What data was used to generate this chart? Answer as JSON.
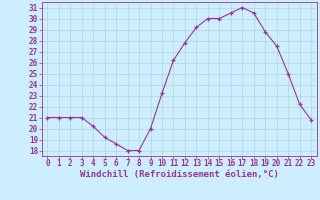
{
  "x": [
    0,
    1,
    2,
    3,
    4,
    5,
    6,
    7,
    8,
    9,
    10,
    11,
    12,
    13,
    14,
    15,
    16,
    17,
    18,
    19,
    20,
    21,
    22,
    23
  ],
  "y": [
    21.0,
    21.0,
    21.0,
    21.0,
    20.2,
    19.2,
    18.6,
    18.0,
    18.0,
    20.0,
    23.2,
    26.2,
    27.8,
    29.2,
    30.0,
    30.0,
    30.5,
    31.0,
    30.5,
    28.8,
    27.5,
    25.0,
    22.2,
    20.8
  ],
  "xlim": [
    -0.5,
    23.5
  ],
  "ylim": [
    17.5,
    31.5
  ],
  "yticks": [
    18,
    19,
    20,
    21,
    22,
    23,
    24,
    25,
    26,
    27,
    28,
    29,
    30,
    31
  ],
  "xticks": [
    0,
    1,
    2,
    3,
    4,
    5,
    6,
    7,
    8,
    9,
    10,
    11,
    12,
    13,
    14,
    15,
    16,
    17,
    18,
    19,
    20,
    21,
    22,
    23
  ],
  "line_color": "#993399",
  "marker": "+",
  "marker_color": "#993399",
  "bg_color": "#cceeff",
  "grid_color": "#aacccc",
  "xlabel": "Windchill (Refroidissement éolien,°C)",
  "xlabel_color": "#993399",
  "tick_color": "#993399",
  "axis_color": "#993399",
  "font_size_label": 6.5,
  "font_size_tick": 5.5
}
